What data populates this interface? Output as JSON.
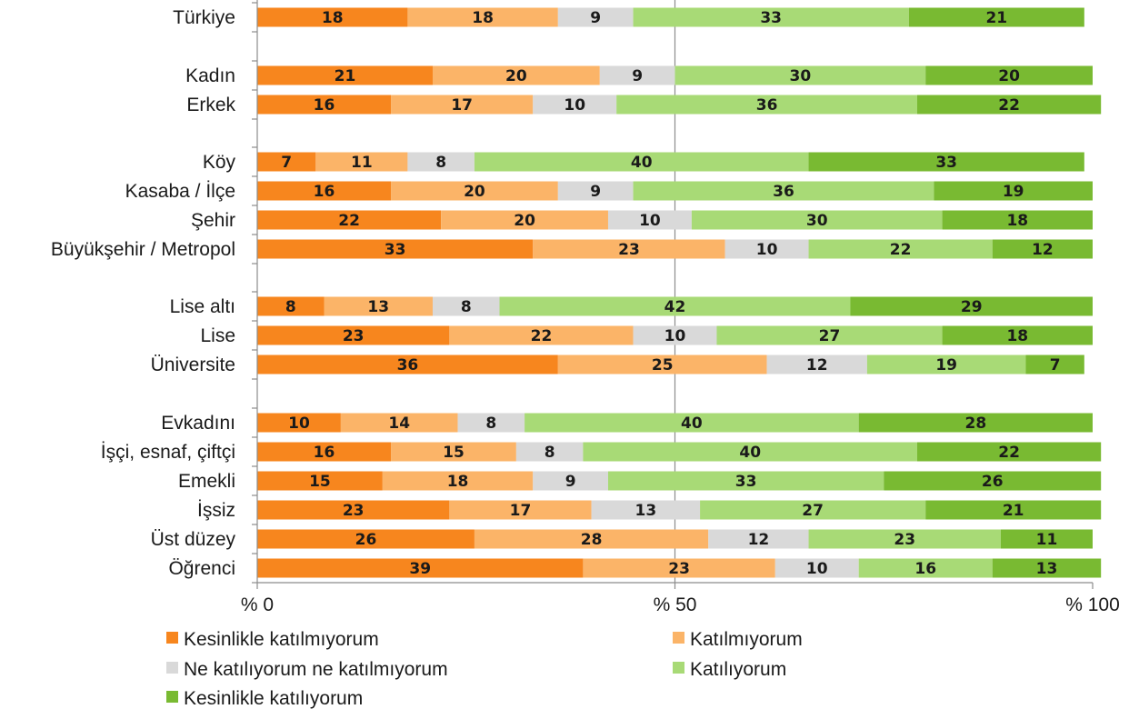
{
  "chart_data": {
    "type": "bar",
    "orientation": "horizontal",
    "stacked": "percent",
    "categories": [
      "Türkiye",
      "Kadın",
      "Erkek",
      "Köy",
      "Kasaba / İlçe",
      "Şehir",
      "Büyükşehir / Metropol",
      "Lise altı",
      "Lise",
      "Üniversite",
      "Evkadını",
      "İşçi, esnaf, çiftçi",
      "Emekli",
      "İşsiz",
      "Üst düzey",
      "Öğrenci"
    ],
    "groups": [
      [
        0
      ],
      [
        1,
        2
      ],
      [
        3,
        4,
        5,
        6
      ],
      [
        7,
        8,
        9
      ],
      [
        10,
        11,
        12,
        13,
        14,
        15
      ]
    ],
    "series": [
      {
        "name": "Kesinlikle katılmıyorum",
        "color": "#F7861E",
        "values": [
          18,
          21,
          16,
          7,
          16,
          22,
          33,
          8,
          23,
          36,
          10,
          16,
          15,
          23,
          26,
          39
        ]
      },
      {
        "name": "Katılmıyorum",
        "color": "#FBB468",
        "values": [
          18,
          20,
          17,
          11,
          20,
          20,
          23,
          13,
          22,
          25,
          14,
          15,
          18,
          17,
          28,
          23
        ]
      },
      {
        "name": "Ne katılıyorum ne katılmıyorum",
        "color": "#D9D9D9",
        "values": [
          9,
          9,
          10,
          8,
          9,
          10,
          10,
          8,
          10,
          12,
          8,
          8,
          9,
          13,
          12,
          10
        ]
      },
      {
        "name": "Katılıyorum",
        "color": "#A8DA76",
        "values": [
          33,
          30,
          36,
          40,
          36,
          30,
          22,
          42,
          27,
          19,
          40,
          40,
          33,
          27,
          23,
          16
        ]
      },
      {
        "name": "Kesinlikle katılıyorum",
        "color": "#79BA32",
        "values": [
          21,
          20,
          22,
          33,
          19,
          18,
          12,
          29,
          18,
          7,
          28,
          22,
          26,
          21,
          11,
          13
        ]
      }
    ],
    "x_ticks": [
      "% 0",
      "% 50",
      "% 100"
    ],
    "xlim": [
      0,
      100
    ],
    "gridlines": [
      50
    ],
    "legend": {
      "position": "bottom",
      "columns": 2
    },
    "title": "",
    "xlabel": "",
    "ylabel": ""
  }
}
